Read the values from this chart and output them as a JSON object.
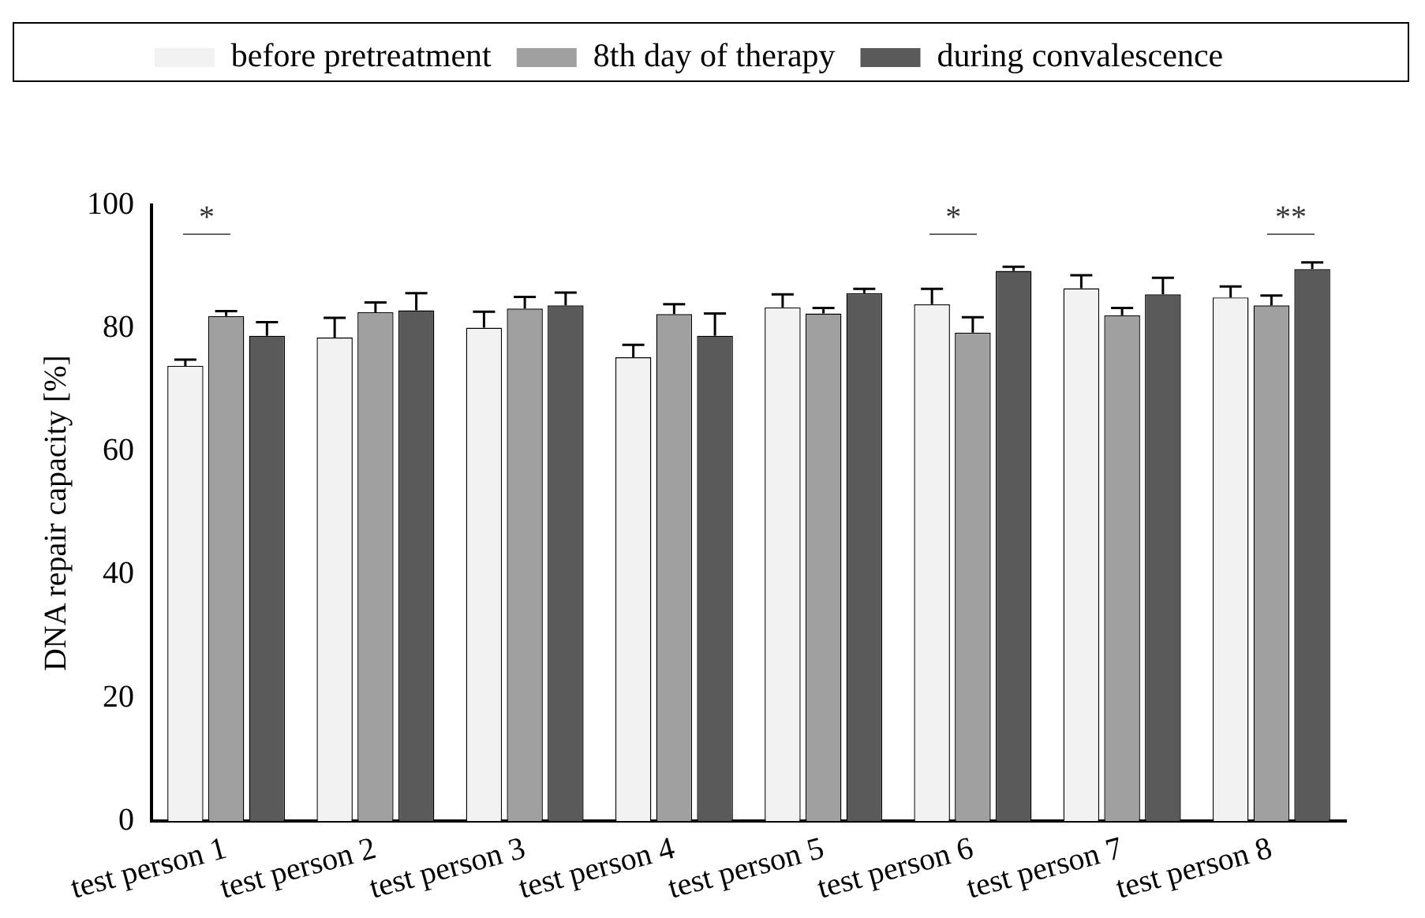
{
  "chart_data": {
    "type": "bar",
    "ylabel": "DNA repair capacity [%]",
    "categories": [
      "test person 1",
      "test person 2",
      "test person 3",
      "test person 4",
      "test person 5",
      "test person 6",
      "test person 7",
      "test person 8"
    ],
    "series": [
      {
        "name": "before pretreatment",
        "color": "#f2f2f2",
        "values": [
          73.9,
          78.5,
          80.1,
          75.3,
          83.4,
          83.9,
          86.5,
          85.0
        ],
        "errors": [
          [
            73.9,
            74.9
          ],
          [
            78.5,
            81.7
          ],
          [
            80.1,
            82.7
          ],
          [
            75.3,
            77.3
          ],
          [
            83.4,
            85.5
          ],
          [
            83.9,
            86.4
          ],
          [
            86.5,
            88.6
          ],
          [
            85.0,
            86.8
          ]
        ]
      },
      {
        "name": "8th day of therapy",
        "color": "#a0a0a0",
        "values": [
          82.0,
          82.6,
          83.2,
          82.3,
          82.4,
          79.3,
          82.1,
          83.7
        ],
        "errors": [
          [
            82.0,
            82.8
          ],
          [
            82.6,
            84.2
          ],
          [
            83.2,
            85.1
          ],
          [
            82.3,
            83.9
          ],
          [
            82.4,
            83.3
          ],
          [
            79.3,
            81.8
          ],
          [
            82.1,
            83.3
          ],
          [
            83.7,
            85.3
          ]
        ]
      },
      {
        "name": "during convalescence",
        "color": "#5a5a5a",
        "values": [
          78.8,
          82.9,
          83.7,
          78.8,
          85.7,
          89.3,
          85.5,
          89.6
        ],
        "errors": [
          [
            78.8,
            81.0
          ],
          [
            82.9,
            85.7
          ],
          [
            83.7,
            85.8
          ],
          [
            78.8,
            82.4
          ],
          [
            85.7,
            86.4
          ],
          [
            89.3,
            90.0
          ],
          [
            85.5,
            88.2
          ],
          [
            89.6,
            90.7
          ]
        ]
      }
    ],
    "ylim": [
      0,
      100
    ],
    "yticks": [
      0,
      20,
      40,
      60,
      80,
      100
    ],
    "grid": false,
    "legend": "top",
    "annotations": [
      "*",
      "*",
      "**"
    ]
  }
}
